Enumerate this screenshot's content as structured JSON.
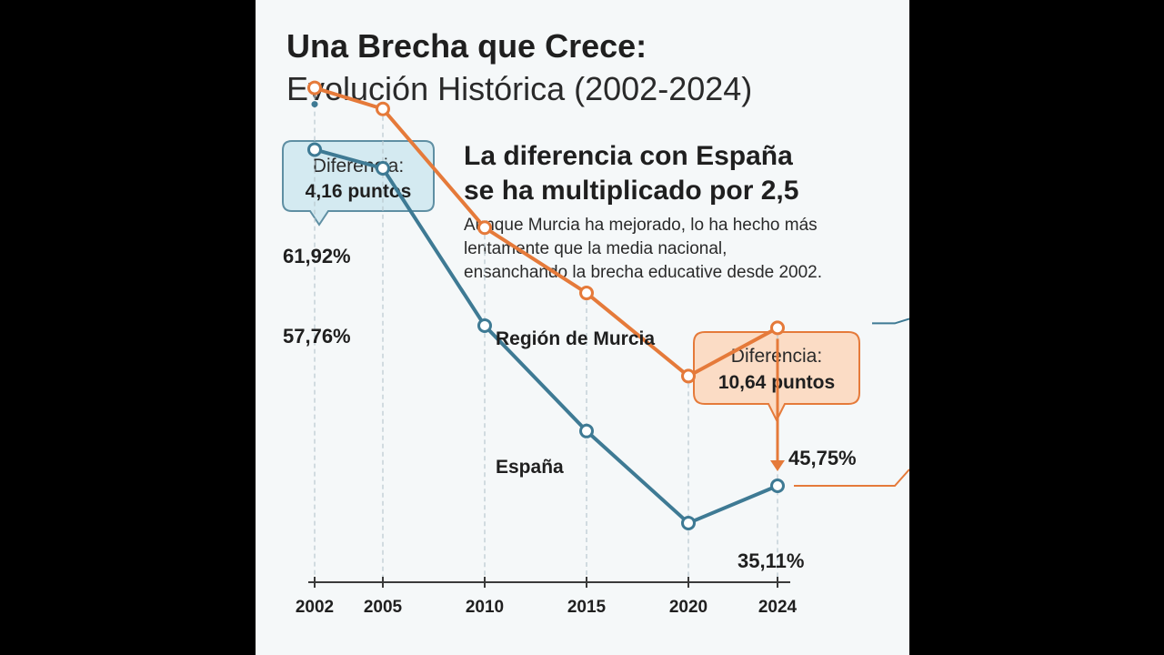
{
  "title": "Una Brecha que Crece:",
  "subtitle": "Evolución Histórica (2002-2024)",
  "heading_lines": [
    "La diferencia con España",
    "se ha multiplicado por 2,5"
  ],
  "body_lines": [
    "Aunque Murcia ha mejorado, lo ha hecho más",
    "lentamente que la media nacional,",
    "ensanchando la brecha educative desde 2002."
  ],
  "callout_start": {
    "line1": "Diferencia:",
    "line2": "4,16 puntos"
  },
  "callout_end": {
    "line1": "Diferencia:",
    "line2": "10,64 puntos"
  },
  "colors": {
    "murcia": "#e57a3a",
    "espana": "#3e7a94",
    "callout_start_fill": "#d4eaf1",
    "callout_start_stroke": "#5f8fa3",
    "callout_end_fill": "#fbdcc5",
    "callout_end_stroke": "#e57a3a",
    "panel_background": "#f5f8f9"
  },
  "chart_data": {
    "type": "line",
    "x": [
      2002,
      2005,
      2010,
      2015,
      2020,
      2024
    ],
    "tick_labels": [
      "2002",
      "2005",
      "2010",
      "2015",
      "2020",
      "2024"
    ],
    "series": [
      {
        "name": "Región de Murcia",
        "values": [
          61.92,
          60.5,
          52.5,
          48.1,
          42.5,
          45.75
        ]
      },
      {
        "name": "España",
        "values": [
          57.76,
          56.5,
          45.9,
          38.8,
          32.6,
          35.11
        ]
      }
    ],
    "data_labels": {
      "murcia_start": "61,92%",
      "espana_start": "57,76%",
      "murcia_end": "45,75%",
      "espana_end": "35,11%"
    },
    "ylim": [
      28,
      66
    ],
    "grid": "vertical dashed lines at each year",
    "legend": "inline labels next to series"
  }
}
